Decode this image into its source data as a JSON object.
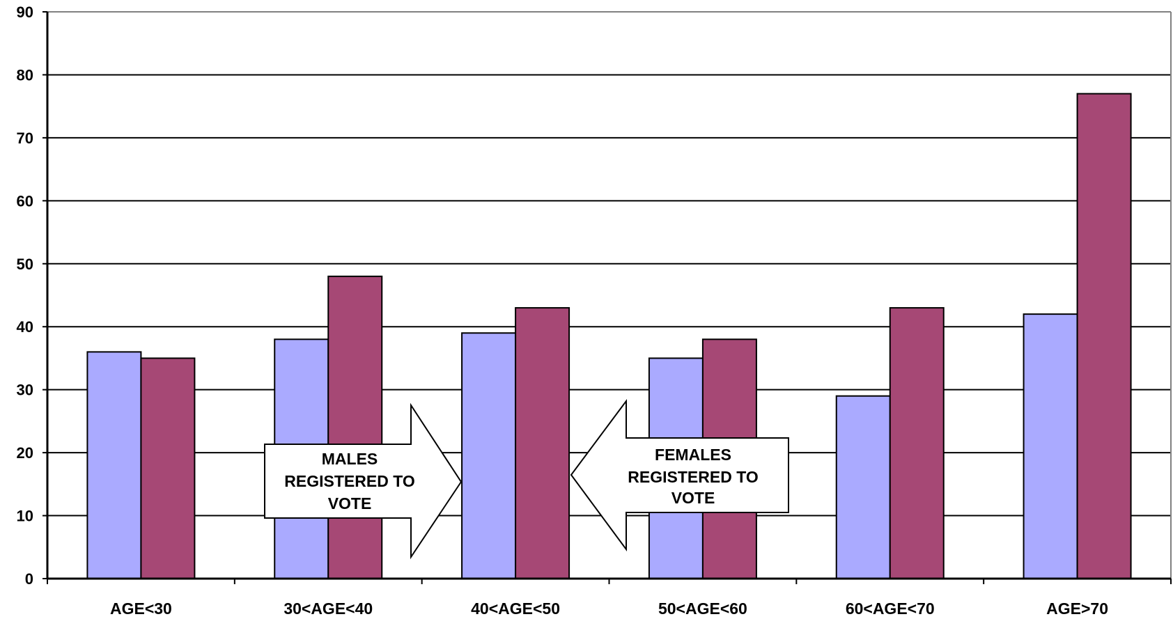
{
  "colors": {
    "males": "#aaaaff",
    "females": "#a64875",
    "grid": "#000000",
    "frame": "#808080"
  },
  "chart_data": {
    "type": "bar",
    "title": "",
    "xlabel": "",
    "ylabel": "",
    "categories": [
      "AGE<30",
      "30<AGE<40",
      "40<AGE<50",
      "50<AGE<60",
      "60<AGE<70",
      "AGE>70"
    ],
    "series": [
      {
        "name": "MALES REGISTERED TO VOTE",
        "values": [
          36,
          38,
          39,
          35,
          29,
          42
        ]
      },
      {
        "name": "FEMALES REGISTERED TO VOTE",
        "values": [
          35,
          48,
          43,
          38,
          43,
          77
        ]
      }
    ],
    "ylim": [
      0,
      90
    ],
    "yticks": [
      0,
      10,
      20,
      30,
      40,
      50,
      60,
      70,
      80,
      90
    ],
    "grid": true,
    "legend": "inline arrow callouts",
    "annotations": [
      {
        "series": 0,
        "lines": [
          "MALES",
          "REGISTERED TO",
          "VOTE"
        ],
        "direction": "right"
      },
      {
        "series": 1,
        "lines": [
          "FEMALES",
          "REGISTERED TO",
          "VOTE"
        ],
        "direction": "left"
      }
    ]
  }
}
